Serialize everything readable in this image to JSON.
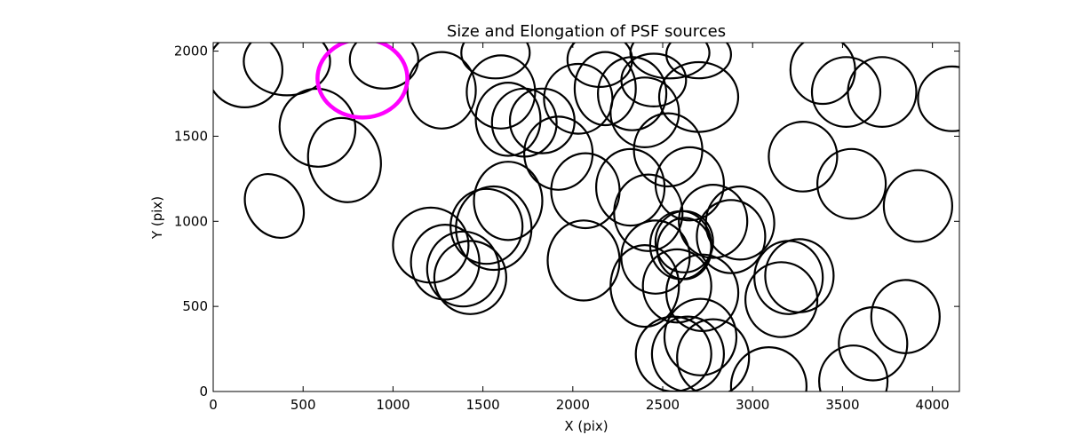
{
  "chart_data": {
    "type": "scatter",
    "marker": "ellipse",
    "title": "Size and Elongation of PSF sources",
    "xlabel": "X (pix)",
    "ylabel": "Y (pix)",
    "xlim": [
      0,
      4150
    ],
    "ylim": [
      0,
      2050
    ],
    "xticks": [
      0,
      500,
      1000,
      1500,
      2000,
      2500,
      3000,
      3500,
      4000
    ],
    "yticks": [
      0,
      500,
      1000,
      1500,
      2000
    ],
    "grid": false,
    "colors": {
      "normal": "#000000",
      "highlight": "#ff00ff"
    },
    "highlight": {
      "x": 830,
      "y": 1840,
      "w": 500,
      "h": 460,
      "angle": 0
    },
    "sources": [
      {
        "x": 175,
        "y": 1890,
        "w": 420,
        "h": 440,
        "angle": 0
      },
      {
        "x": 410,
        "y": 1940,
        "w": 480,
        "h": 400,
        "angle": 0
      },
      {
        "x": 580,
        "y": 1550,
        "w": 420,
        "h": 460,
        "angle": 20
      },
      {
        "x": 730,
        "y": 1360,
        "w": 400,
        "h": 500,
        "angle": 15
      },
      {
        "x": 340,
        "y": 1090,
        "w": 300,
        "h": 400,
        "angle": 35
      },
      {
        "x": 950,
        "y": 1950,
        "w": 380,
        "h": 340,
        "angle": 0
      },
      {
        "x": 1270,
        "y": 1770,
        "w": 380,
        "h": 450,
        "angle": 0
      },
      {
        "x": 1570,
        "y": 1990,
        "w": 380,
        "h": 300,
        "angle": 0
      },
      {
        "x": 1600,
        "y": 1760,
        "w": 380,
        "h": 430,
        "angle": 0
      },
      {
        "x": 1640,
        "y": 1600,
        "w": 360,
        "h": 430,
        "angle": 0
      },
      {
        "x": 1730,
        "y": 1580,
        "w": 360,
        "h": 400,
        "angle": 0
      },
      {
        "x": 1830,
        "y": 1590,
        "w": 360,
        "h": 380,
        "angle": 0
      },
      {
        "x": 1920,
        "y": 1400,
        "w": 380,
        "h": 430,
        "angle": 0
      },
      {
        "x": 2030,
        "y": 1720,
        "w": 380,
        "h": 410,
        "angle": 0
      },
      {
        "x": 2150,
        "y": 1950,
        "w": 360,
        "h": 320,
        "angle": 0
      },
      {
        "x": 2180,
        "y": 1780,
        "w": 340,
        "h": 430,
        "angle": 0
      },
      {
        "x": 2330,
        "y": 1750,
        "w": 380,
        "h": 430,
        "angle": 0
      },
      {
        "x": 2450,
        "y": 1830,
        "w": 360,
        "h": 310,
        "angle": 0
      },
      {
        "x": 2540,
        "y": 1990,
        "w": 440,
        "h": 300,
        "angle": 0
      },
      {
        "x": 2700,
        "y": 1980,
        "w": 360,
        "h": 280,
        "angle": 0
      },
      {
        "x": 2700,
        "y": 1730,
        "w": 440,
        "h": 410,
        "angle": 0
      },
      {
        "x": 2400,
        "y": 1640,
        "w": 380,
        "h": 410,
        "angle": 0
      },
      {
        "x": 2530,
        "y": 1420,
        "w": 380,
        "h": 430,
        "angle": 0
      },
      {
        "x": 2650,
        "y": 1220,
        "w": 380,
        "h": 430,
        "angle": 0
      },
      {
        "x": 2070,
        "y": 1180,
        "w": 380,
        "h": 440,
        "angle": 0
      },
      {
        "x": 2320,
        "y": 1200,
        "w": 380,
        "h": 450,
        "angle": 0
      },
      {
        "x": 2420,
        "y": 1050,
        "w": 380,
        "h": 450,
        "angle": 0
      },
      {
        "x": 1640,
        "y": 1120,
        "w": 380,
        "h": 460,
        "angle": 0
      },
      {
        "x": 1560,
        "y": 960,
        "w": 420,
        "h": 490,
        "angle": 0
      },
      {
        "x": 1520,
        "y": 970,
        "w": 400,
        "h": 440,
        "angle": 0
      },
      {
        "x": 1210,
        "y": 860,
        "w": 420,
        "h": 440,
        "angle": 0
      },
      {
        "x": 1290,
        "y": 760,
        "w": 380,
        "h": 440,
        "angle": 0
      },
      {
        "x": 1390,
        "y": 720,
        "w": 400,
        "h": 440,
        "angle": 0
      },
      {
        "x": 1430,
        "y": 670,
        "w": 400,
        "h": 430,
        "angle": 0
      },
      {
        "x": 2060,
        "y": 770,
        "w": 400,
        "h": 470,
        "angle": 0
      },
      {
        "x": 2400,
        "y": 620,
        "w": 380,
        "h": 480,
        "angle": 0
      },
      {
        "x": 2460,
        "y": 790,
        "w": 380,
        "h": 430,
        "angle": 0
      },
      {
        "x": 2580,
        "y": 620,
        "w": 380,
        "h": 430,
        "angle": 0
      },
      {
        "x": 2600,
        "y": 860,
        "w": 340,
        "h": 400,
        "angle": 0
      },
      {
        "x": 2620,
        "y": 880,
        "w": 320,
        "h": 360,
        "angle": 0
      },
      {
        "x": 2620,
        "y": 840,
        "w": 300,
        "h": 360,
        "angle": 0
      },
      {
        "x": 2720,
        "y": 580,
        "w": 400,
        "h": 450,
        "angle": 0
      },
      {
        "x": 2780,
        "y": 1000,
        "w": 380,
        "h": 430,
        "angle": 0
      },
      {
        "x": 2880,
        "y": 910,
        "w": 380,
        "h": 430,
        "angle": 0
      },
      {
        "x": 2930,
        "y": 990,
        "w": 380,
        "h": 430,
        "angle": 0
      },
      {
        "x": 2710,
        "y": 320,
        "w": 400,
        "h": 450,
        "angle": 0
      },
      {
        "x": 2780,
        "y": 200,
        "w": 400,
        "h": 450,
        "angle": 0
      },
      {
        "x": 2640,
        "y": 220,
        "w": 400,
        "h": 440,
        "angle": 0
      },
      {
        "x": 2560,
        "y": 220,
        "w": 420,
        "h": 440,
        "angle": 0
      },
      {
        "x": 3090,
        "y": 30,
        "w": 420,
        "h": 460,
        "angle": 0
      },
      {
        "x": 3160,
        "y": 540,
        "w": 400,
        "h": 440,
        "angle": 0
      },
      {
        "x": 3200,
        "y": 670,
        "w": 380,
        "h": 430,
        "angle": 0
      },
      {
        "x": 3260,
        "y": 680,
        "w": 380,
        "h": 430,
        "angle": 0
      },
      {
        "x": 3280,
        "y": 1380,
        "w": 380,
        "h": 410,
        "angle": 0
      },
      {
        "x": 3550,
        "y": 1220,
        "w": 380,
        "h": 410,
        "angle": 0
      },
      {
        "x": 3520,
        "y": 1760,
        "w": 380,
        "h": 410,
        "angle": 0
      },
      {
        "x": 3720,
        "y": 1760,
        "w": 380,
        "h": 410,
        "angle": 0
      },
      {
        "x": 3390,
        "y": 1890,
        "w": 360,
        "h": 400,
        "angle": 0
      },
      {
        "x": 4110,
        "y": 1720,
        "w": 380,
        "h": 380,
        "angle": 0
      },
      {
        "x": 3920,
        "y": 1090,
        "w": 380,
        "h": 420,
        "angle": 0
      },
      {
        "x": 3850,
        "y": 440,
        "w": 380,
        "h": 430,
        "angle": 0
      },
      {
        "x": 3670,
        "y": 280,
        "w": 380,
        "h": 430,
        "angle": 0
      },
      {
        "x": 3560,
        "y": 60,
        "w": 380,
        "h": 420,
        "angle": 0
      }
    ]
  }
}
